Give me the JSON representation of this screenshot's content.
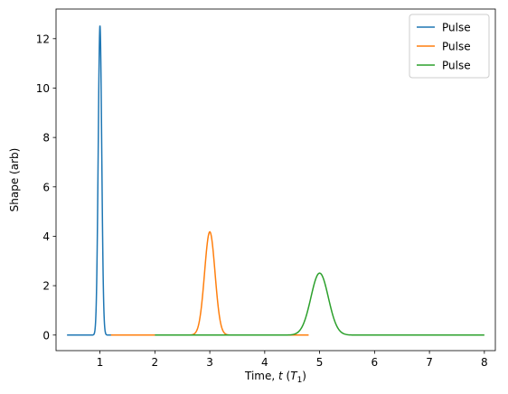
{
  "chart_data": {
    "type": "line",
    "xlabel_prefix": "Time, ",
    "xlabel_var": "t",
    "xlabel_unit_open": " (",
    "xlabel_unit_var": "T",
    "xlabel_unit_sub": "1",
    "xlabel_unit_close": ")",
    "ylabel": "Shape (arb)",
    "xlim": [
      0.2,
      8.2
    ],
    "ylim": [
      -0.63,
      13.2
    ],
    "xticks": [
      1,
      2,
      3,
      4,
      5,
      6,
      7,
      8
    ],
    "yticks": [
      0,
      2,
      4,
      6,
      8,
      10,
      12
    ],
    "grid": false,
    "legend_position": "top-right",
    "series": [
      {
        "name": "Pulse",
        "color": "#1f77b4",
        "center": 1,
        "sigma": 0.0318,
        "amplitude": 12.53,
        "x_range": [
          0.4,
          1.6
        ]
      },
      {
        "name": "Pulse",
        "color": "#ff7f0e",
        "center": 3,
        "sigma": 0.095,
        "amplitude": 4.18,
        "x_range": [
          1.2,
          4.8
        ]
      },
      {
        "name": "Pulse",
        "color": "#2ca02c",
        "center": 5,
        "sigma": 0.159,
        "amplitude": 2.51,
        "x_range": [
          2.0,
          8.0
        ]
      }
    ]
  }
}
